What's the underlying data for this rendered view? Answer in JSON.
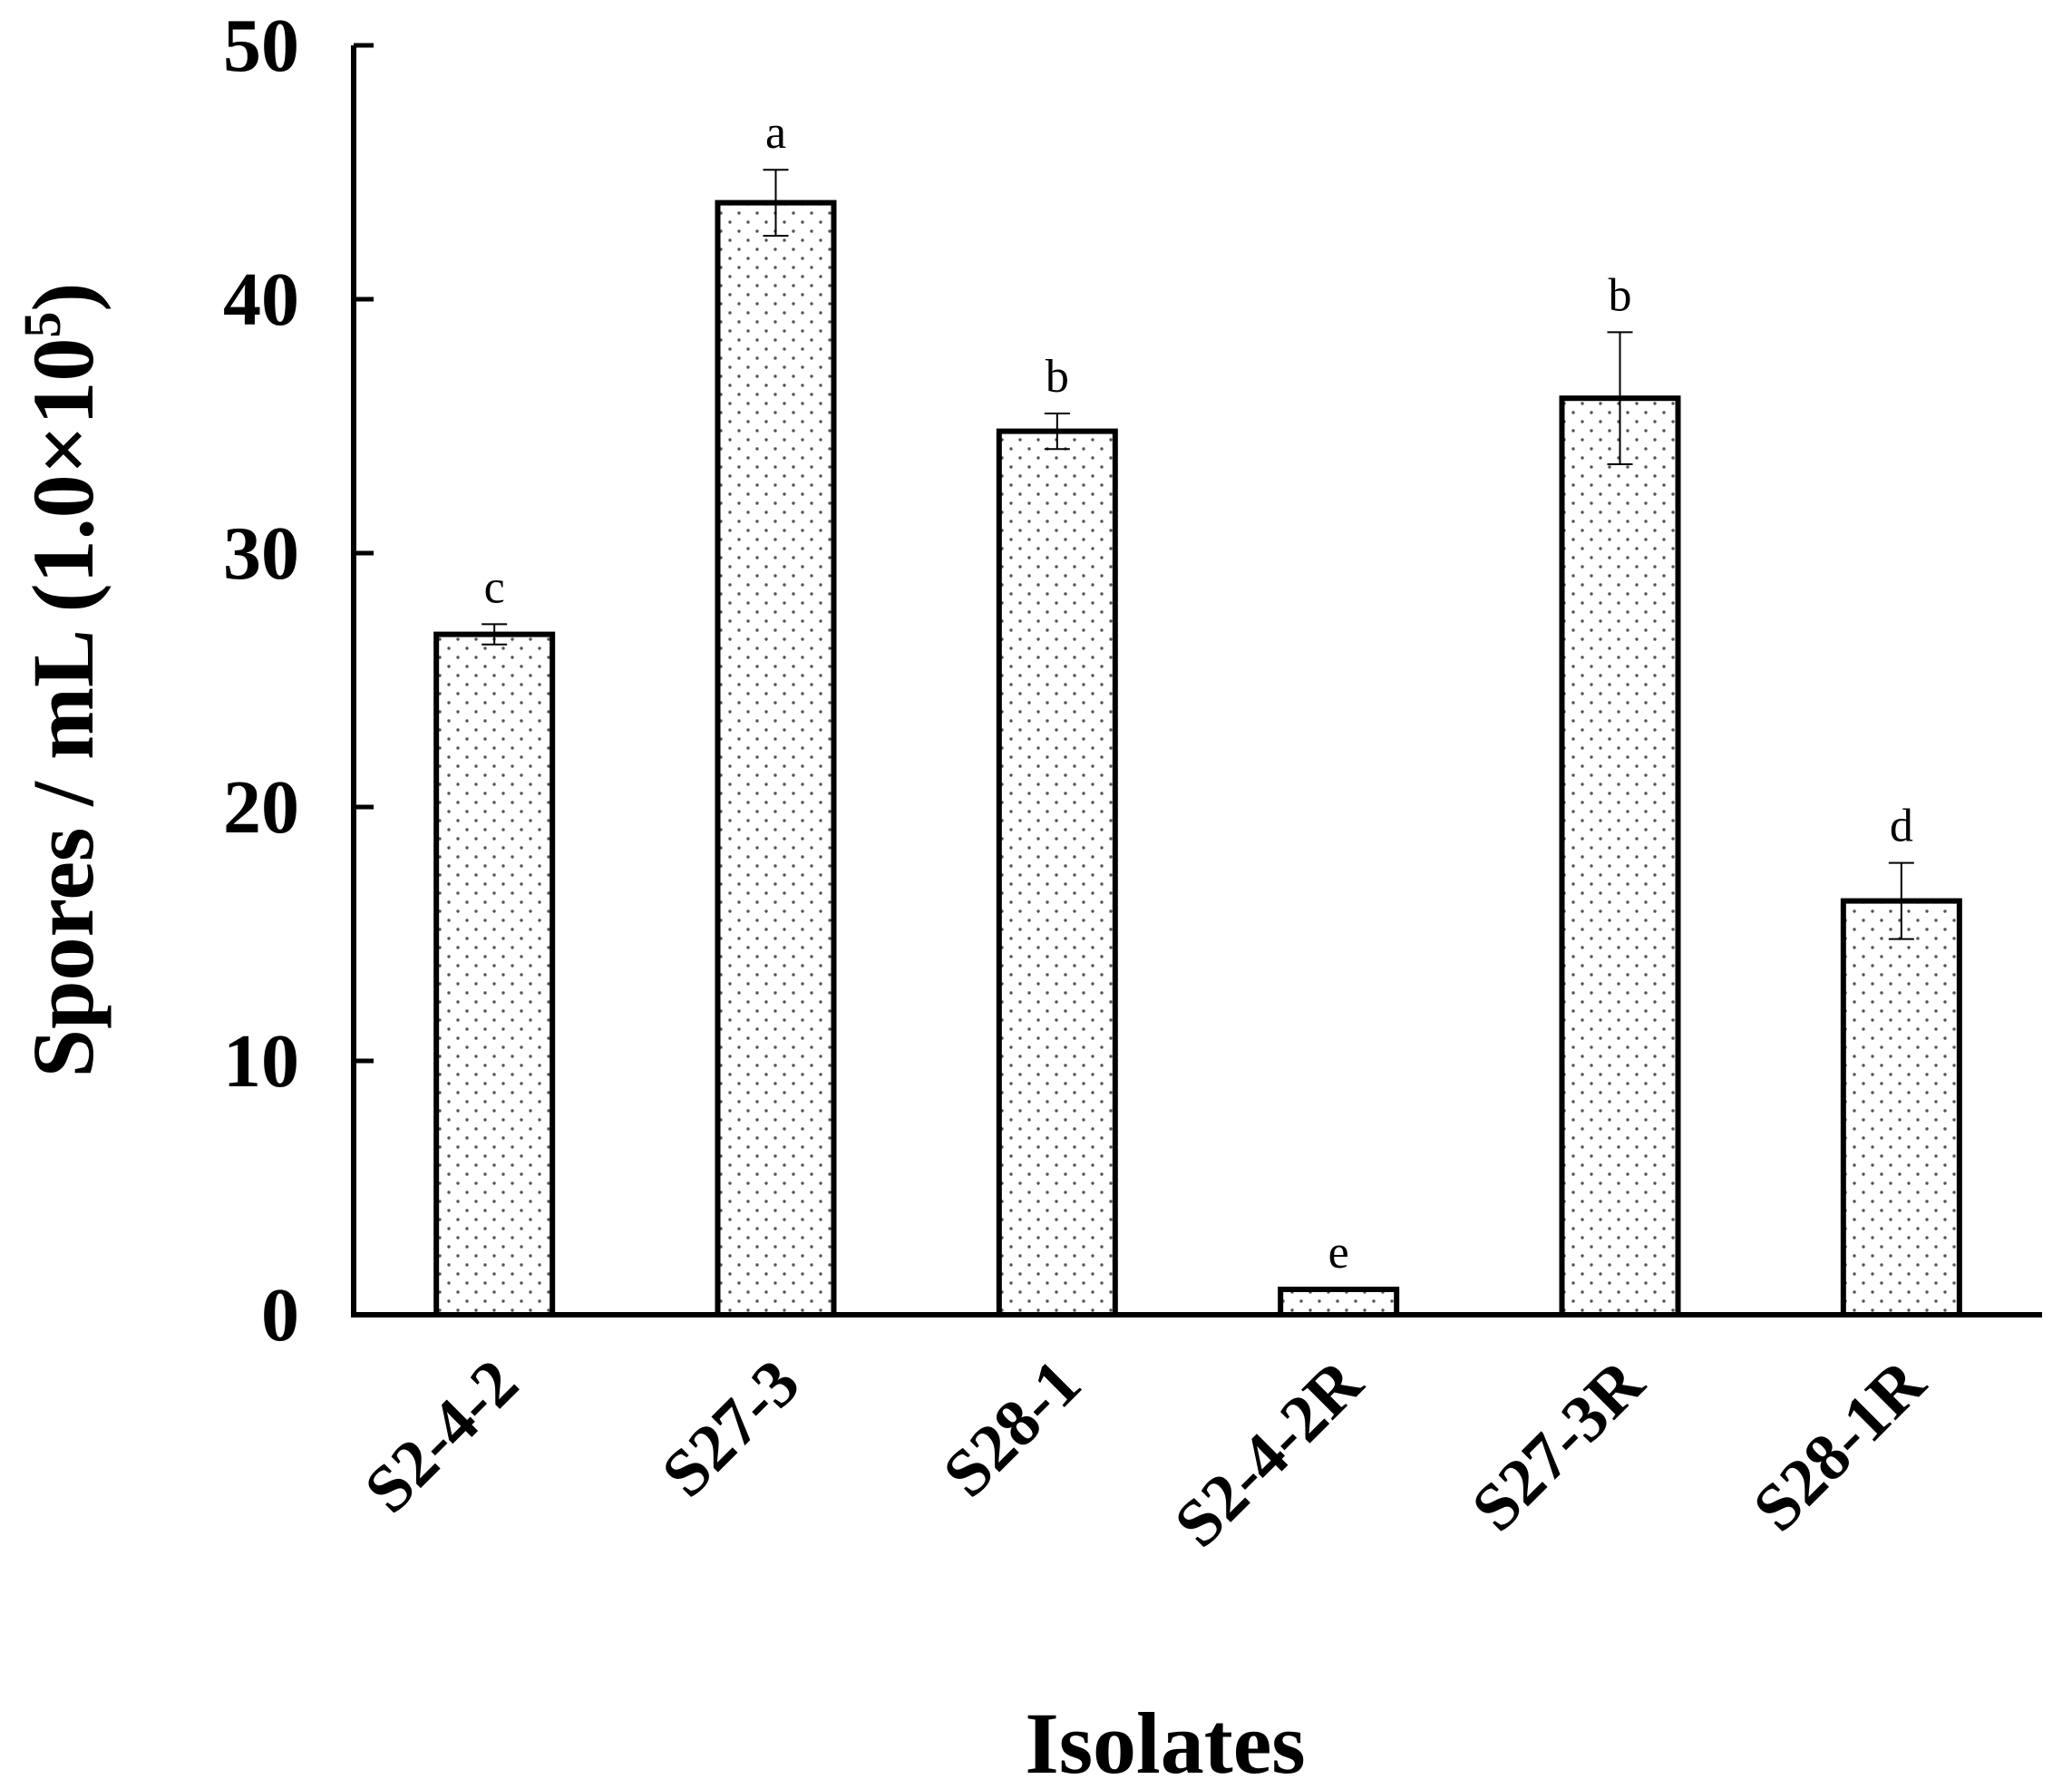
{
  "chart_data": {
    "type": "bar",
    "categories": [
      "S2-4-2",
      "S27-3",
      "S28-1",
      "S2-4-2R",
      "S27-3R",
      "S28-1R"
    ],
    "values": [
      26.8,
      43.8,
      34.8,
      1.0,
      36.1,
      16.3
    ],
    "errors": [
      0.4,
      1.3,
      0.7,
      0.0,
      2.6,
      1.5
    ],
    "significance_letters": [
      "c",
      "a",
      "b",
      "e",
      "b",
      "d"
    ],
    "xlabel": "Isolates",
    "ylabel": "Spores / mL (1.0×10",
    "ylabel_superscript": "5",
    "ylabel_close": ")",
    "ylim": [
      0,
      50
    ],
    "yticks": [
      "0",
      "10",
      "20",
      "30",
      "40",
      "50"
    ],
    "grid": false,
    "bar_fill": "dotted pattern",
    "colors": {
      "bar_stroke": "#000000",
      "bar_fill": "#ffffff",
      "dots": "#555555"
    }
  }
}
